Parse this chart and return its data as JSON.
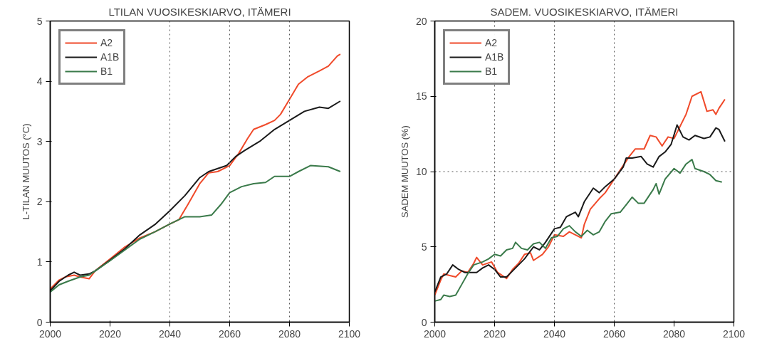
{
  "chart_data": [
    {
      "type": "line",
      "title": "LTILAN VUOSIKESKIARVO, ITÄMERI",
      "ylabel": "L-TILAN MUUTOS (°C)",
      "xlim": [
        2000,
        2100
      ],
      "xticks": [
        2000,
        2020,
        2040,
        2060,
        2080,
        2100
      ],
      "ylim": [
        0,
        5
      ],
      "yticks": [
        0,
        1,
        2,
        3,
        4,
        5
      ],
      "grid": false,
      "legend": "top left",
      "line_style": "solid",
      "marker": "none",
      "ref_lines": [
        {
          "axis": "x",
          "value": 2040,
          "line_style": "dotted"
        },
        {
          "axis": "x",
          "value": 2060,
          "line_style": "dotted"
        },
        {
          "axis": "x",
          "value": 2080,
          "line_style": "dotted"
        }
      ],
      "series": [
        {
          "name": "A2",
          "color": "#f04a2a",
          "x": [
            2000,
            2003,
            2005,
            2008,
            2010,
            2013,
            2015,
            2020,
            2025,
            2030,
            2035,
            2040,
            2043,
            2046,
            2050,
            2053,
            2056,
            2060,
            2063,
            2066,
            2068,
            2072,
            2075,
            2077,
            2080,
            2083,
            2086,
            2090,
            2093,
            2096,
            2097
          ],
          "values": [
            0.55,
            0.7,
            0.75,
            0.78,
            0.75,
            0.72,
            0.85,
            1.05,
            1.25,
            1.4,
            1.5,
            1.63,
            1.7,
            1.95,
            2.3,
            2.48,
            2.5,
            2.6,
            2.8,
            3.05,
            3.2,
            3.28,
            3.35,
            3.45,
            3.7,
            3.95,
            4.07,
            4.17,
            4.25,
            4.42,
            4.45
          ]
        },
        {
          "name": "A1B",
          "color": "#1a1a1a",
          "x": [
            2000,
            2003,
            2006,
            2008,
            2010,
            2013,
            2015,
            2020,
            2025,
            2030,
            2035,
            2040,
            2045,
            2050,
            2053,
            2056,
            2059,
            2062,
            2065,
            2070,
            2075,
            2080,
            2085,
            2090,
            2093,
            2097
          ],
          "values": [
            0.52,
            0.68,
            0.78,
            0.83,
            0.78,
            0.8,
            0.85,
            1.03,
            1.22,
            1.45,
            1.62,
            1.85,
            2.1,
            2.4,
            2.5,
            2.55,
            2.6,
            2.75,
            2.85,
            3.0,
            3.2,
            3.35,
            3.5,
            3.57,
            3.55,
            3.67
          ]
        },
        {
          "name": "B1",
          "color": "#3a7a4a",
          "x": [
            2000,
            2003,
            2006,
            2010,
            2013,
            2015,
            2020,
            2025,
            2030,
            2035,
            2040,
            2045,
            2050,
            2054,
            2057,
            2060,
            2064,
            2068,
            2072,
            2075,
            2080,
            2083,
            2087,
            2093,
            2097
          ],
          "values": [
            0.5,
            0.62,
            0.68,
            0.75,
            0.78,
            0.85,
            1.02,
            1.2,
            1.38,
            1.5,
            1.63,
            1.75,
            1.75,
            1.78,
            1.95,
            2.15,
            2.25,
            2.3,
            2.32,
            2.42,
            2.42,
            2.5,
            2.6,
            2.58,
            2.5
          ]
        }
      ]
    },
    {
      "type": "line",
      "title": "SADEM. VUOSIKESKIARVO, ITÄMERI",
      "ylabel": "SADEM MUUTOS (%)",
      "xlim": [
        2000,
        2100
      ],
      "xticks": [
        2000,
        2020,
        2040,
        2060,
        2080,
        2100
      ],
      "ylim": [
        0,
        20
      ],
      "yticks": [
        0,
        5,
        10,
        15,
        20
      ],
      "grid": false,
      "legend": "top left",
      "line_style": "solid",
      "marker": "none",
      "ref_lines": [
        {
          "axis": "x",
          "value": 2020,
          "line_style": "dotted"
        },
        {
          "axis": "x",
          "value": 2040,
          "line_style": "dotted"
        },
        {
          "axis": "x",
          "value": 2060,
          "line_style": "dotted"
        },
        {
          "axis": "y",
          "value": 10,
          "line_style": "dotted"
        }
      ],
      "series": [
        {
          "name": "A2",
          "color": "#f04a2a",
          "x": [
            2000,
            2002,
            2003,
            2005,
            2007,
            2009,
            2011,
            2013,
            2014,
            2016,
            2019,
            2021,
            2024,
            2026,
            2028,
            2030,
            2032,
            2033,
            2036,
            2038,
            2040,
            2043,
            2045,
            2047,
            2049,
            2050,
            2052,
            2055,
            2057,
            2059,
            2062,
            2065,
            2067,
            2070,
            2072,
            2074,
            2076,
            2078,
            2080,
            2082,
            2084,
            2086,
            2089,
            2091,
            2093,
            2094,
            2095,
            2097
          ],
          "values": [
            1.8,
            2.8,
            3.2,
            3.1,
            3.0,
            3.4,
            3.3,
            3.9,
            4.3,
            3.8,
            4.0,
            3.3,
            2.9,
            3.5,
            3.9,
            4.5,
            4.6,
            4.1,
            4.5,
            5.0,
            5.8,
            5.7,
            6.0,
            5.8,
            5.6,
            6.5,
            7.5,
            8.2,
            8.6,
            9.2,
            10.1,
            11.0,
            11.5,
            11.5,
            12.4,
            12.3,
            11.7,
            12.3,
            12.2,
            13.0,
            13.8,
            15.0,
            15.3,
            14.0,
            14.1,
            13.8,
            14.2,
            14.8
          ]
        },
        {
          "name": "A1B",
          "color": "#1a1a1a",
          "x": [
            2000,
            2002,
            2004,
            2006,
            2008,
            2010,
            2012,
            2014,
            2016,
            2018,
            2020,
            2022,
            2024,
            2026,
            2028,
            2030,
            2033,
            2035,
            2037,
            2040,
            2042,
            2044,
            2047,
            2048,
            2050,
            2053,
            2055,
            2057,
            2060,
            2063,
            2064,
            2066,
            2069,
            2071,
            2073,
            2075,
            2077,
            2079,
            2081,
            2083,
            2085,
            2087,
            2090,
            2092,
            2094,
            2095,
            2097
          ],
          "values": [
            2.0,
            3.0,
            3.2,
            3.8,
            3.5,
            3.3,
            3.3,
            3.3,
            3.6,
            3.8,
            3.5,
            3.0,
            3.0,
            3.4,
            3.8,
            4.2,
            5.0,
            4.8,
            5.3,
            6.2,
            6.3,
            7.0,
            7.3,
            7.0,
            8.0,
            8.9,
            8.6,
            9.0,
            9.5,
            10.3,
            10.9,
            10.9,
            11.0,
            10.5,
            10.3,
            11.0,
            11.3,
            11.8,
            13.1,
            12.3,
            12.1,
            12.4,
            12.2,
            12.3,
            12.9,
            12.8,
            12.0
          ]
        },
        {
          "name": "B1",
          "color": "#3a7a4a",
          "x": [
            2000,
            2002,
            2003,
            2005,
            2007,
            2009,
            2011,
            2013,
            2016,
            2018,
            2020,
            2022,
            2024,
            2026,
            2027,
            2029,
            2031,
            2033,
            2035,
            2037,
            2039,
            2041,
            2043,
            2045,
            2047,
            2049,
            2051,
            2053,
            2055,
            2057,
            2059,
            2062,
            2064,
            2066,
            2068,
            2070,
            2073,
            2074,
            2075,
            2077,
            2080,
            2082,
            2084,
            2086,
            2087,
            2090,
            2092,
            2094,
            2096
          ],
          "values": [
            1.4,
            1.5,
            1.8,
            1.7,
            1.8,
            2.5,
            3.2,
            3.8,
            4.0,
            4.2,
            4.5,
            4.4,
            4.8,
            4.9,
            5.3,
            4.9,
            4.8,
            5.2,
            5.3,
            4.9,
            5.6,
            5.7,
            6.2,
            6.4,
            6.0,
            5.7,
            6.1,
            5.8,
            6.0,
            6.7,
            7.2,
            7.3,
            7.8,
            8.3,
            7.9,
            7.9,
            8.8,
            9.2,
            8.5,
            9.5,
            10.2,
            9.9,
            10.5,
            10.8,
            10.2,
            10.0,
            9.8,
            9.4,
            9.3
          ]
        }
      ]
    }
  ]
}
